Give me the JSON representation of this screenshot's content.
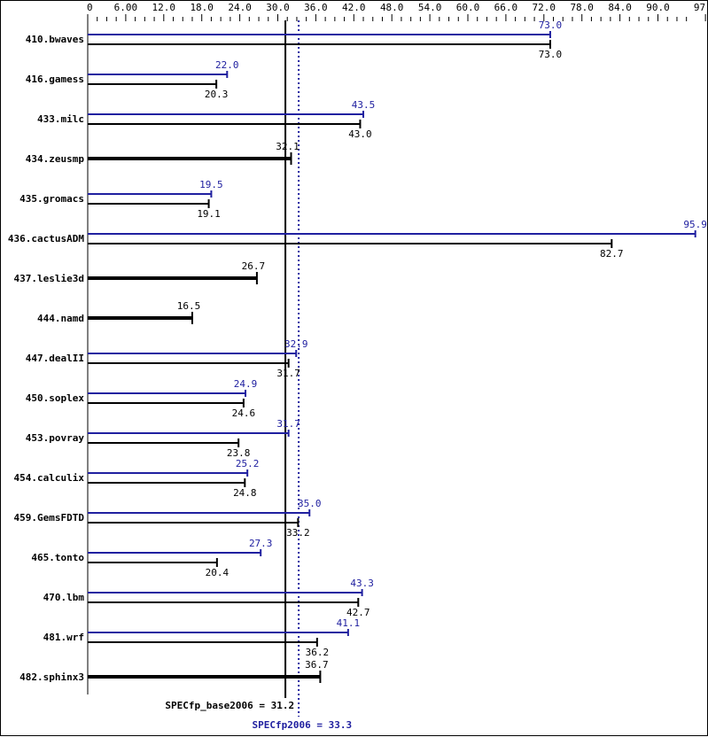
{
  "chart_data": {
    "type": "bar",
    "orientation": "horizontal",
    "xlim": [
      0,
      97.5
    ],
    "tick_labels": [
      "0",
      "6.00",
      "12.0",
      "18.0",
      "24.0",
      "30.0",
      "36.0",
      "42.0",
      "48.0",
      "54.0",
      "60.0",
      "66.0",
      "72.0",
      "78.0",
      "84.0",
      "90.0",
      "97.5"
    ],
    "tick_values": [
      0,
      6,
      12,
      18,
      24,
      30,
      36,
      42,
      48,
      54,
      60,
      66,
      72,
      78,
      84,
      90,
      97.5
    ],
    "axis_position": "top",
    "grid": false,
    "colors": {
      "peak": "#2020a0",
      "base": "#000000"
    },
    "categories": [
      "410.bwaves",
      "416.gamess",
      "433.milc",
      "434.zeusmp",
      "435.gromacs",
      "436.cactusADM",
      "437.leslie3d",
      "444.namd",
      "447.dealII",
      "450.soplex",
      "453.povray",
      "454.calculix",
      "459.GemsFDTD",
      "465.tonto",
      "470.lbm",
      "481.wrf",
      "482.sphinx3"
    ],
    "series": [
      {
        "key": "peak",
        "values": [
          73.0,
          22.0,
          43.5,
          null,
          19.5,
          95.9,
          null,
          null,
          32.9,
          24.9,
          31.7,
          25.2,
          35.0,
          27.3,
          43.3,
          41.1,
          null
        ],
        "labels": [
          "73.0",
          "22.0",
          "43.5",
          null,
          "19.5",
          "95.9",
          null,
          null,
          "32.9",
          "24.9",
          "31.7",
          "25.2",
          "35.0",
          "27.3",
          "43.3",
          "41.1",
          null
        ]
      },
      {
        "key": "base",
        "values": [
          73.0,
          20.3,
          43.0,
          32.1,
          19.1,
          82.7,
          26.7,
          16.5,
          31.7,
          24.6,
          23.8,
          24.8,
          33.2,
          20.4,
          42.7,
          36.2,
          36.7
        ],
        "labels": [
          "73.0",
          "20.3",
          "43.0",
          "32.1",
          "19.1",
          "82.7",
          "26.7",
          "16.5",
          "31.7",
          "24.6",
          "23.8",
          "24.8",
          "33.2",
          "20.4",
          "42.7",
          "36.2",
          "36.7"
        ]
      }
    ],
    "reference_lines": [
      {
        "key": "base",
        "value": 31.2,
        "label": "SPECfp_base2006 = 31.2",
        "style": "solid"
      },
      {
        "key": "peak",
        "value": 33.3,
        "label": "SPECfp2006 = 33.3",
        "style": "dotted"
      }
    ]
  }
}
